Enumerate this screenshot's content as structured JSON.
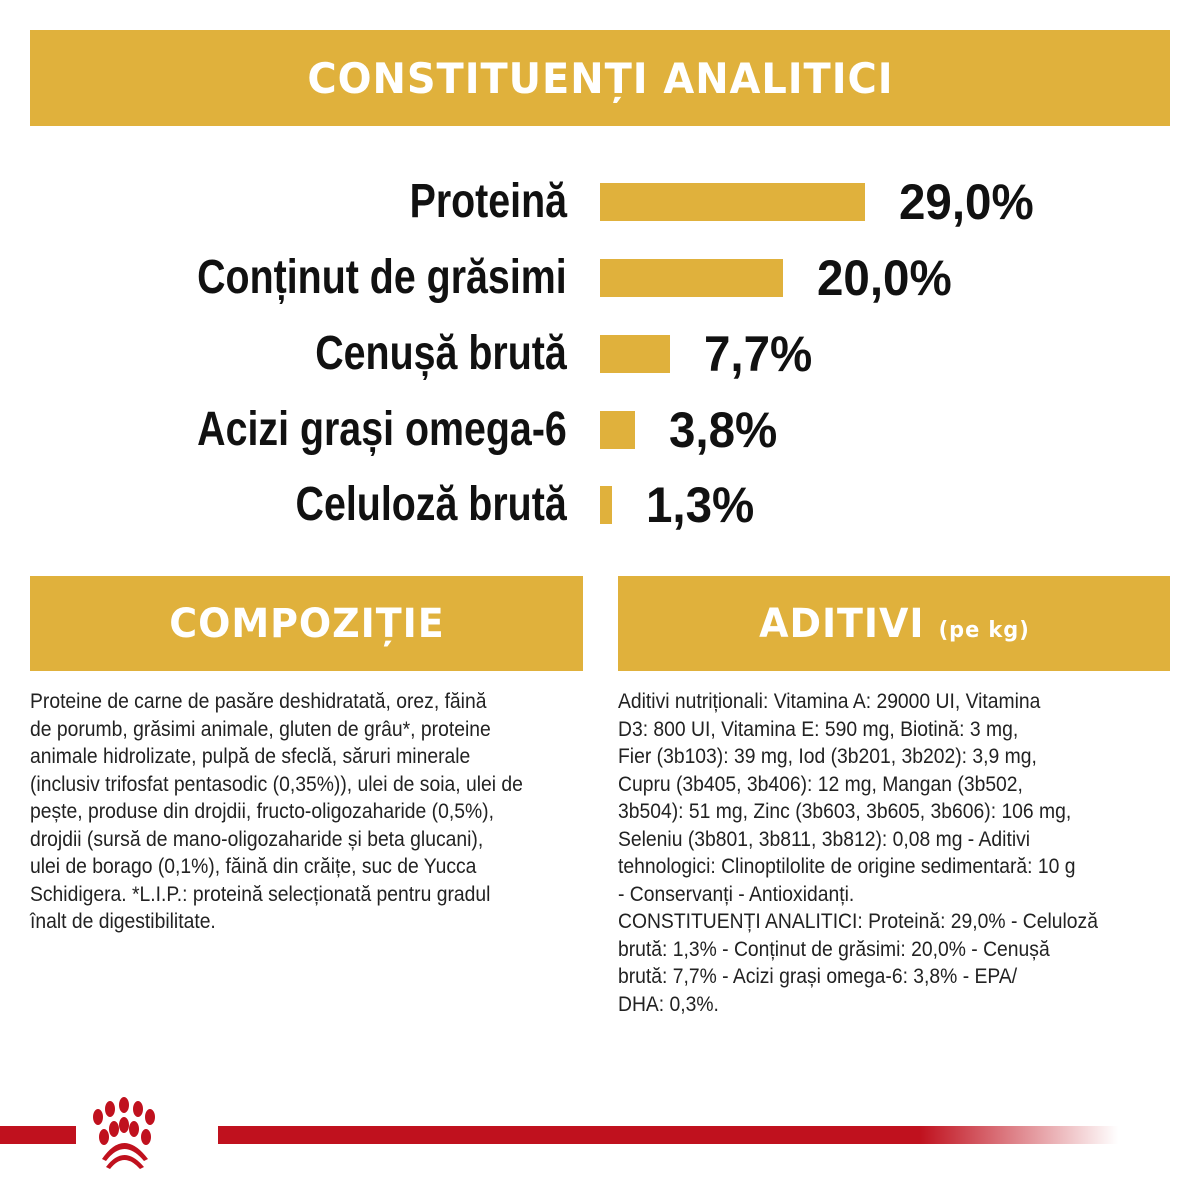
{
  "header": {
    "title": "CONSTITUENȚI ANALITICI"
  },
  "chart_data": {
    "type": "bar",
    "orientation": "horizontal",
    "categories": [
      "Proteină",
      "Conținut de grăsimi",
      "Cenușă brută",
      "Acizi grași omega-6",
      "Celuloză brută"
    ],
    "values": [
      29.0,
      20.0,
      7.7,
      3.8,
      1.3
    ],
    "value_labels": [
      "29,0%",
      "20,0%",
      "7,7%",
      "3,8%",
      "1,3%"
    ],
    "unit": "%",
    "bar_color": "#e0b13c",
    "grid": false
  },
  "composition": {
    "title": "COMPOZIȚIE",
    "lines": [
      "Proteine de carne de pasăre deshidratată, orez, făină",
      "de porumb, grăsimi animale, gluten de grâu*, proteine",
      "animale hidrolizate, pulpă de sfeclă, săruri minerale",
      "(inclusiv trifosfat pentasodic (0,35%)), ulei de soia, ulei de",
      "pește, produse din drojdii, fructo-oligozaharide (0,5%),",
      "drojdii (sursă de mano-oligozaharide și beta glucani),",
      "ulei de borago (0,1%), făină din crăițe, suc de Yucca",
      "Schidigera. *L.I.P.: proteină selecționată pentru gradul",
      "înalt de digestibilitate."
    ]
  },
  "additives": {
    "title": "ADITIVI",
    "subtitle": "(pe kg)",
    "lines": [
      "Aditivi nutriționali: Vitamina A: 29000 UI, Vitamina",
      "D3: 800 UI, Vitamina E: 590 mg, Biotină: 3 mg,",
      "Fier (3b103): 39 mg, Iod (3b201, 3b202): 3,9 mg,",
      "Cupru (3b405, 3b406): 12 mg, Mangan (3b502,",
      "3b504): 51 mg, Zinc (3b603, 3b605, 3b606): 106 mg,",
      "Seleniu (3b801, 3b811, 3b812): 0,08 mg - Aditivi",
      "tehnologici: Clinoptilolite de origine sedimentară: 10 g",
      "- Conservanți - Antioxidanți.",
      "CONSTITUENȚI ANALITICI: Proteină: 29,0% - Celuloză",
      "brută: 1,3% - Conținut de grăsimi: 20,0% - Cenușă",
      "brută: 7,7% - Acizi grași omega-6: 3,8% - EPA/",
      "DHA: 0,3%."
    ]
  },
  "footer": {
    "logo_icon": "royal-canin-paw-crown-icon",
    "brand_color": "#c0111e"
  }
}
